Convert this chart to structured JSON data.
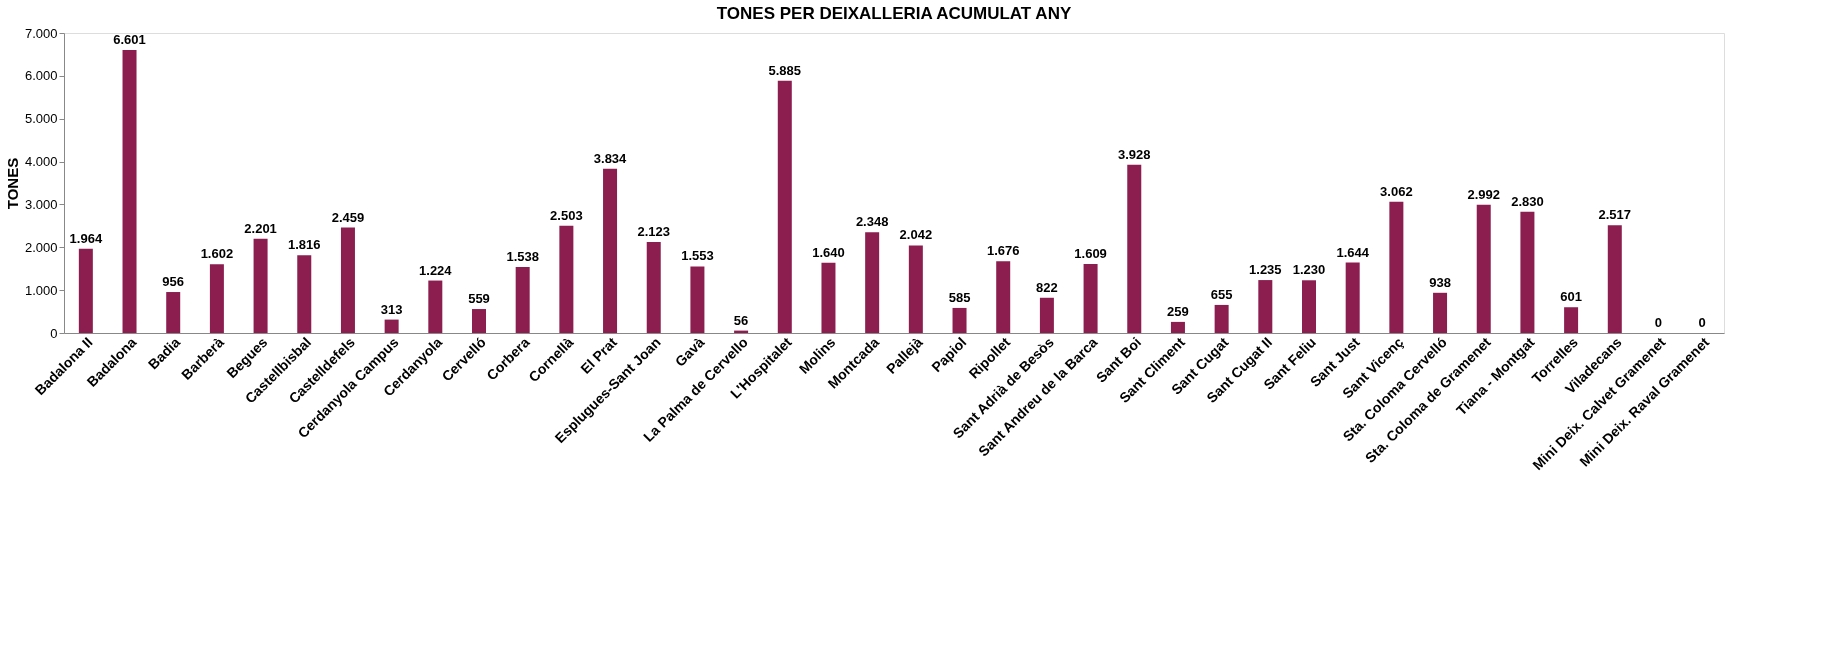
{
  "chart_data": {
    "type": "bar",
    "title": "TONES PER DEIXALLERIA ACUMULAT ANY",
    "ylabel": "TONES",
    "categories": [
      "Badalona II",
      "Badalona",
      "Badia",
      "Barberà",
      "Begues",
      "Castellbisbal",
      "Castelldefels",
      "Cerdanyola Campus",
      "Cerdanyola",
      "Cervelló",
      "Corbera",
      "Cornellà",
      "El Prat",
      "Esplugues-Sant Joan",
      "Gavà",
      "La Palma de Cervello",
      "L'Hospitalet",
      "Molins",
      "Montcada",
      "Pallejà",
      "Papiol",
      "Ripollet",
      "Sant Adrià de Besòs",
      "Sant Andreu de la Barca",
      "Sant Boi",
      "Sant Climent",
      "Sant Cugat",
      "Sant Cugat II",
      "Sant Feliu",
      "Sant Just",
      "Sant Vicenç",
      "Sta. Coloma Cervelló",
      "Sta. Coloma de Gramenet",
      "Tiana - Montgat",
      "Torrelles",
      "Viladecans",
      "Mini Deix. Calvet Gramenet",
      "Mini Deix. Raval Gramenet"
    ],
    "values": [
      1964,
      6601,
      956,
      1602,
      2201,
      1816,
      2459,
      313,
      1224,
      559,
      1538,
      2503,
      3834,
      2123,
      1553,
      56,
      5885,
      1640,
      2348,
      2042,
      585,
      1676,
      822,
      1609,
      3928,
      259,
      655,
      1235,
      1230,
      1644,
      3062,
      938,
      2992,
      2830,
      601,
      2517,
      0,
      0
    ],
    "value_labels": [
      "1.964",
      "6.601",
      "956",
      "1.602",
      "2.201",
      "1.816",
      "2.459",
      "313",
      "1.224",
      "559",
      "1.538",
      "2.503",
      "3.834",
      "2.123",
      "1.553",
      "56",
      "5.885",
      "1.640",
      "2.348",
      "2.042",
      "585",
      "1.676",
      "822",
      "1.609",
      "3.928",
      "259",
      "655",
      "1.235",
      "1.230",
      "1.644",
      "3.062",
      "938",
      "2.992",
      "2.830",
      "601",
      "2.517",
      "0",
      "0"
    ],
    "color": "#8b1d4f",
    "ylim": [
      0,
      7000
    ],
    "yticks": [
      {
        "value": 0,
        "label": "0"
      },
      {
        "value": 1000,
        "label": "1.000"
      },
      {
        "value": 2000,
        "label": "2.000"
      },
      {
        "value": 3000,
        "label": "3.000"
      },
      {
        "value": 4000,
        "label": "4.000"
      },
      {
        "value": 5000,
        "label": "5.000"
      },
      {
        "value": 6000,
        "label": "6.000"
      },
      {
        "value": 7000,
        "label": "7.000"
      }
    ],
    "grid": false
  }
}
